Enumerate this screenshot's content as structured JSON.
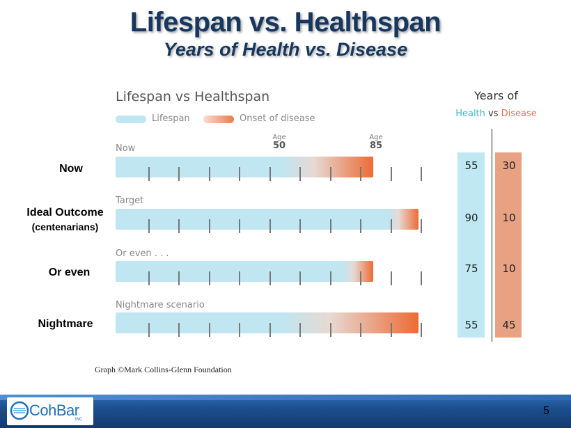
{
  "slide": {
    "title": "Lifespan vs. Healthspan",
    "subtitle": "Years of Health vs. Disease",
    "page_number": "5"
  },
  "row_labels": [
    {
      "label": "Now",
      "sub": ""
    },
    {
      "label": "Ideal Outcome",
      "sub": "(centenarians)"
    },
    {
      "label": "Or even",
      "sub": ""
    },
    {
      "label": "Nightmare",
      "sub": ""
    }
  ],
  "graph": {
    "title": "Lifespan vs Healthspan",
    "legend": [
      {
        "label": "Lifespan",
        "color": "#bfe6f1"
      },
      {
        "label": "Onset of disease",
        "color": "#ec7a4c"
      }
    ],
    "age_markers": [
      {
        "prefix": "Age",
        "value": "50"
      },
      {
        "prefix": "Age",
        "value": "85"
      }
    ],
    "scenarios": [
      {
        "label": "Now",
        "healthspan_years": 55,
        "lifespan_years": 85
      },
      {
        "label": "Target",
        "healthspan_years": 90,
        "lifespan_years": 100
      },
      {
        "label": "Or even . . .",
        "healthspan_years": 75,
        "lifespan_years": 85
      },
      {
        "label": "Nightmare scenario",
        "healthspan_years": 55,
        "lifespan_years": 100
      }
    ],
    "credit": "Graph ©Mark Collins-Glenn Foundation"
  },
  "years_table": {
    "title": "Years of",
    "health_label": "Health",
    "vs_label": "vs",
    "disease_label": "Disease",
    "health_color": "#3fb6d8",
    "disease_color": "#e8734a",
    "health_values": [
      "55",
      "90",
      "75",
      "55"
    ],
    "disease_values": [
      "30",
      "10",
      "10",
      "45"
    ]
  },
  "footer": {
    "logo_text": "CohBar",
    "logo_inc": "INC."
  }
}
